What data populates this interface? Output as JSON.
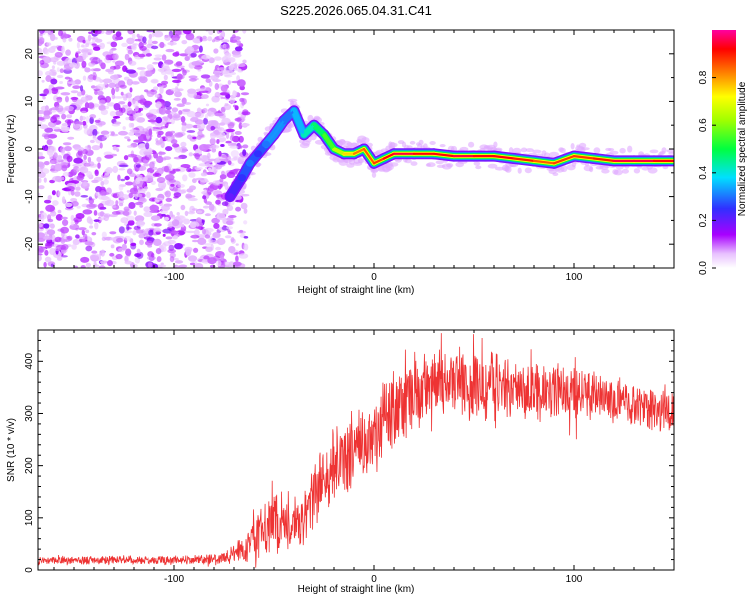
{
  "title": "S225.2026.065.04.31.C41",
  "chart_data": [
    {
      "type": "heatmap",
      "xlabel": "Height of straight line (km)",
      "ylabel": "Frequency (Hz)",
      "xlim": [
        -168,
        150
      ],
      "ylim": [
        -25,
        25
      ],
      "xticks": [
        -100,
        0,
        100
      ],
      "yticks": [
        -20,
        -10,
        0,
        10,
        20
      ],
      "colorbar": {
        "label": "Normalized spectral amplitude",
        "range": [
          0,
          1
        ],
        "ticks": [
          "0.0",
          "0.2",
          "0.4",
          "0.6",
          "0.8"
        ],
        "colors": [
          "#ffffff",
          "#a800ff",
          "#3030ff",
          "#00e0ff",
          "#00ff40",
          "#ffff00",
          "#ff8000",
          "#ff0000",
          "#ff00a0"
        ]
      },
      "noise_region_x": [
        -168,
        -68
      ],
      "signal_trace": {
        "x": [
          -72,
          -66,
          -62,
          -58,
          -54,
          -50,
          -45,
          -40,
          -35,
          -30,
          -25,
          -20,
          -15,
          -10,
          -5,
          0,
          5,
          10,
          20,
          30,
          40,
          50,
          60,
          70,
          80,
          90,
          100,
          110,
          120,
          130,
          140,
          150
        ],
        "freq": [
          -10,
          -6,
          -3,
          -1,
          1,
          3,
          6,
          8,
          3,
          5,
          3,
          0,
          -1,
          -1,
          0,
          -3,
          -2,
          -1,
          -1,
          -1,
          -1.5,
          -1.5,
          -1.5,
          -2,
          -2.5,
          -3,
          -1.5,
          -2,
          -2.5,
          -2.5,
          -2.5,
          -2.5
        ],
        "amplitude": [
          0.2,
          0.25,
          0.3,
          0.25,
          0.3,
          0.35,
          0.3,
          0.3,
          0.4,
          0.45,
          0.5,
          0.6,
          0.7,
          0.8,
          0.85,
          0.85,
          0.9,
          0.95,
          0.95,
          0.9,
          0.95,
          0.95,
          0.9,
          0.95,
          0.85,
          0.85,
          0.9,
          0.85,
          0.95,
          0.95,
          0.95,
          0.9
        ]
      }
    },
    {
      "type": "line",
      "xlabel": "Height of straight line (km)",
      "ylabel": "SNR (10 * v/v)",
      "xlim": [
        -168,
        150
      ],
      "ylim": [
        0,
        460
      ],
      "xticks": [
        -100,
        0,
        100
      ],
      "yticks": [
        0,
        100,
        200,
        300,
        400
      ],
      "color": "#ee3333",
      "series": [
        {
          "name": "SNR",
          "x": [
            -168,
            -150,
            -130,
            -110,
            -90,
            -75,
            -65,
            -60,
            -55,
            -50,
            -45,
            -40,
            -35,
            -30,
            -25,
            -20,
            -15,
            -10,
            -5,
            0,
            5,
            10,
            20,
            30,
            40,
            50,
            60,
            70,
            80,
            90,
            100,
            110,
            120,
            130,
            140,
            150
          ],
          "values": [
            18,
            18,
            20,
            18,
            20,
            22,
            40,
            70,
            80,
            100,
            95,
            80,
            100,
            150,
            180,
            200,
            215,
            235,
            250,
            265,
            290,
            310,
            340,
            355,
            360,
            350,
            355,
            345,
            345,
            345,
            340,
            335,
            330,
            320,
            310,
            300
          ],
          "spread": [
            8,
            8,
            8,
            8,
            8,
            10,
            25,
            45,
            50,
            60,
            55,
            45,
            55,
            60,
            65,
            70,
            70,
            70,
            70,
            70,
            70,
            70,
            70,
            65,
            65,
            65,
            60,
            55,
            50,
            50,
            50,
            45,
            45,
            40,
            40,
            40
          ]
        }
      ]
    }
  ]
}
